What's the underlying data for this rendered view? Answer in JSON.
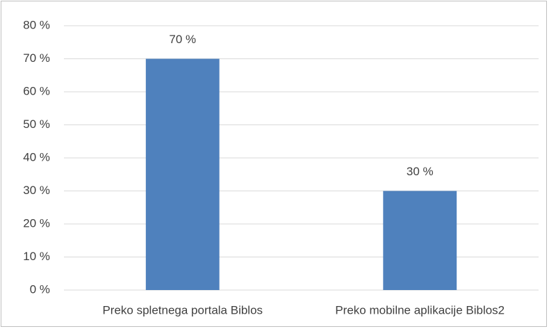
{
  "chart_data": {
    "type": "bar",
    "categories": [
      "Preko spletnega portala Biblos",
      "Preko mobilne aplikacije Biblos2"
    ],
    "values": [
      70,
      30
    ],
    "value_labels": [
      "70 %",
      "30 %"
    ],
    "color": "#4f81bd",
    "ylim": [
      0,
      80
    ],
    "yticks": [
      {
        "value": 0,
        "label": "0 %"
      },
      {
        "value": 10,
        "label": "10 %"
      },
      {
        "value": 20,
        "label": "20 %"
      },
      {
        "value": 30,
        "label": "30 %"
      },
      {
        "value": 40,
        "label": "40 %"
      },
      {
        "value": 50,
        "label": "50 %"
      },
      {
        "value": 60,
        "label": "60 %"
      },
      {
        "value": 70,
        "label": "70 %"
      },
      {
        "value": 80,
        "label": "80 %"
      }
    ],
    "grid": true
  }
}
